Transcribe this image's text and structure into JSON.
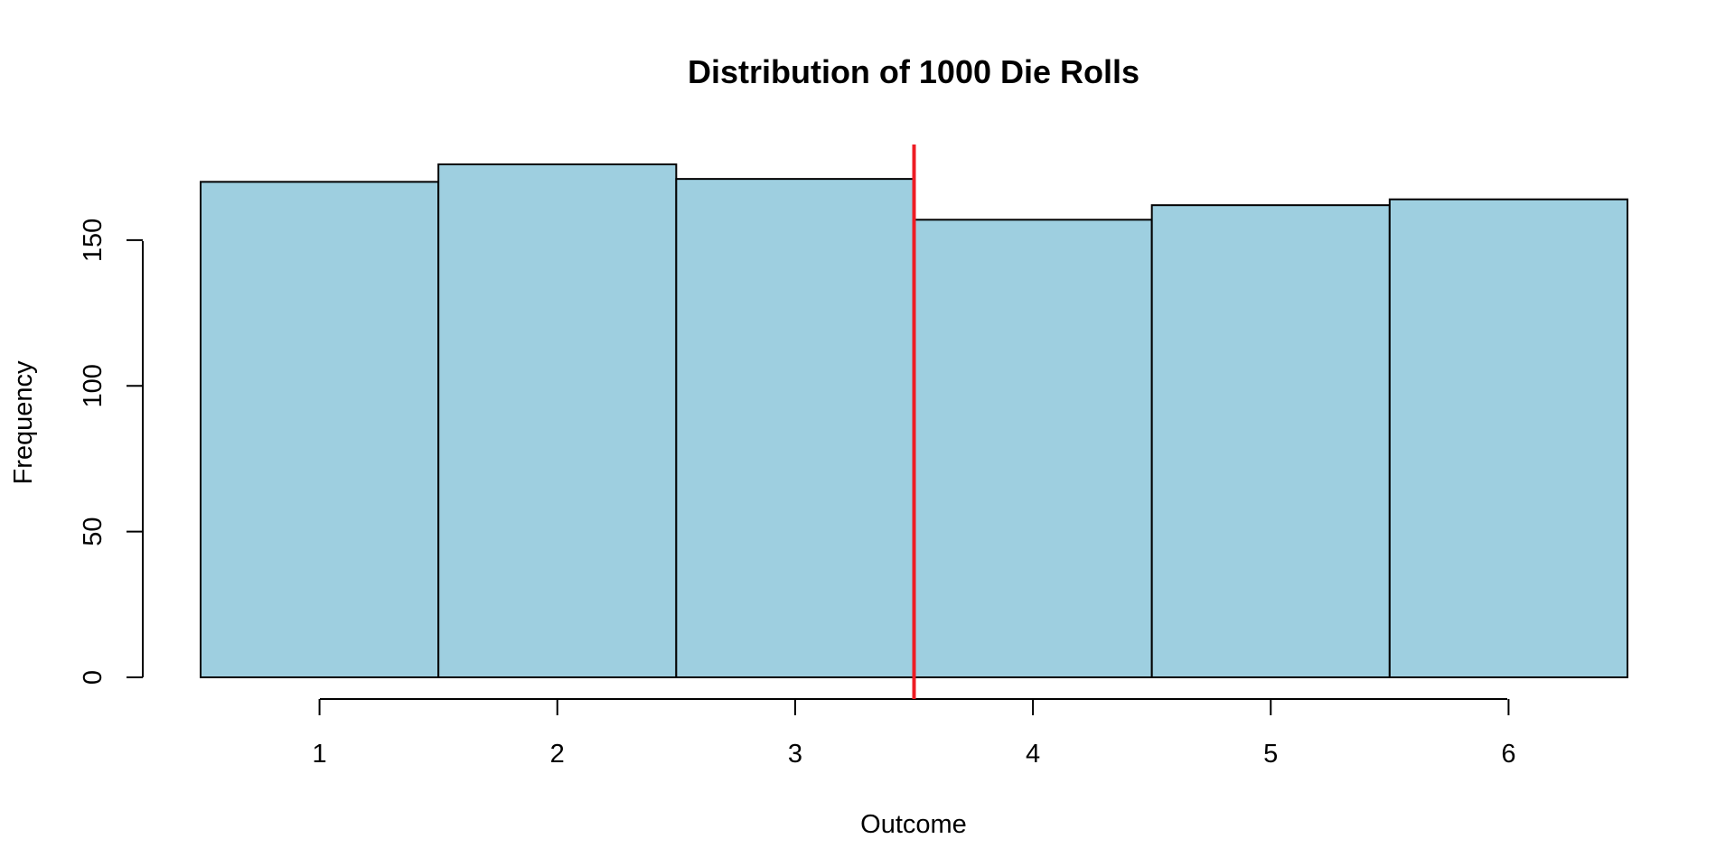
{
  "chart_data": {
    "type": "bar",
    "title": "Distribution of 1000 Die Rolls",
    "xlabel": "Outcome",
    "ylabel": "Frequency",
    "categories": [
      "1",
      "2",
      "3",
      "4",
      "5",
      "6"
    ],
    "values": [
      170,
      176,
      171,
      157,
      162,
      164
    ],
    "xlim": [
      0.5,
      6.5
    ],
    "ylim": [
      0,
      176
    ],
    "x_ticks": [
      1,
      2,
      3,
      4,
      5,
      6
    ],
    "y_ticks": [
      0,
      50,
      100,
      150
    ],
    "reference_line": {
      "orientation": "vertical",
      "x": 3.5,
      "color": "#ee1c24"
    },
    "bar_fill": "#9ecfe0",
    "bar_stroke": "#000000",
    "grid": false,
    "legend": "none"
  }
}
